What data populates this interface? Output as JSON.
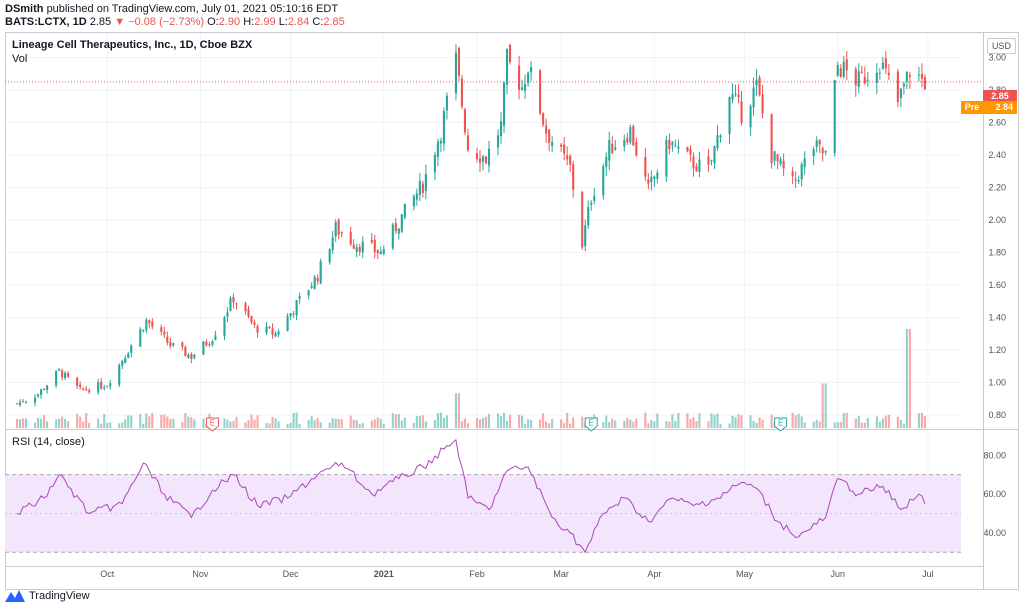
{
  "header": {
    "user": "DSmith",
    "published": "published on TradingView.com, July 01, 2021 05:10:16 EDT",
    "symbol": "BATS:LCTX, 1D",
    "last": "2.85",
    "change": "−0.08 (−2.73%)",
    "o_label": "O:",
    "o": "2.90",
    "h_label": "H:",
    "h": "2.99",
    "l_label": "L:",
    "l": "2.84",
    "c_label": "C:",
    "c": "2.85"
  },
  "pane": {
    "title": "Lineage Cell Therapeutics, Inc., 1D, Cboe BZX",
    "vol_label": "Vol",
    "rsi_label": "RSI (14, close)",
    "currency": "USD",
    "price_tag": "2.85",
    "pre_label": "Pre",
    "pre_price": "2.84"
  },
  "footer": {
    "brand": "TradingView"
  },
  "colors": {
    "up": "#26a69a",
    "down": "#ef5350",
    "rsi_line": "#ab47bc",
    "rsi_band": "#f3e5fb"
  },
  "chart_data": [
    {
      "type": "candlestick",
      "title": "Lineage Cell Therapeutics, Inc., 1D, Cboe BZX",
      "ylim": [
        0.72,
        3.12
      ],
      "yticks": [
        "3.00",
        "2.80",
        "2.60",
        "2.40",
        "2.20",
        "2.00",
        "1.80",
        "1.60",
        "1.40",
        "1.20",
        "1.00",
        "0.80"
      ],
      "x_labels": [
        "Oct",
        "Nov",
        "Dec",
        "2021",
        "Feb",
        "Mar",
        "Apr",
        "May",
        "Jun",
        "Jul"
      ],
      "events": [
        "E",
        "E",
        "E"
      ],
      "anchors": [
        [
          "2020-09-01",
          0.87
        ],
        [
          "2020-09-08",
          0.93
        ],
        [
          "2020-09-15",
          1.07
        ],
        [
          "2020-09-22",
          0.95
        ],
        [
          "2020-10-01",
          0.99
        ],
        [
          "2020-10-08",
          1.2
        ],
        [
          "2020-10-14",
          1.38
        ],
        [
          "2020-10-22",
          1.23
        ],
        [
          "2020-10-29",
          1.16
        ],
        [
          "2020-11-05",
          1.28
        ],
        [
          "2020-11-12",
          1.52
        ],
        [
          "2020-11-19",
          1.34
        ],
        [
          "2020-11-26",
          1.3
        ],
        [
          "2020-12-03",
          1.48
        ],
        [
          "2020-12-10",
          1.66
        ],
        [
          "2020-12-16",
          1.95
        ],
        [
          "2020-12-22",
          1.86
        ],
        [
          "2020-12-31",
          1.8
        ],
        [
          "2021-01-07",
          2.02
        ],
        [
          "2021-01-14",
          2.22
        ],
        [
          "2021-01-20",
          2.55
        ],
        [
          "2021-01-25",
          2.98
        ],
        [
          "2021-01-29",
          2.45
        ],
        [
          "2021-02-04",
          2.38
        ],
        [
          "2021-02-09",
          2.58
        ],
        [
          "2021-02-11",
          2.98
        ],
        [
          "2021-02-16",
          2.82
        ],
        [
          "2021-02-18",
          2.95
        ],
        [
          "2021-02-24",
          2.55
        ],
        [
          "2021-03-01",
          2.4
        ],
        [
          "2021-03-04",
          2.32
        ],
        [
          "2021-03-08",
          1.85
        ],
        [
          "2021-03-11",
          2.14
        ],
        [
          "2021-03-17",
          2.44
        ],
        [
          "2021-03-24",
          2.55
        ],
        [
          "2021-03-30",
          2.18
        ],
        [
          "2021-04-06",
          2.48
        ],
        [
          "2021-04-13",
          2.36
        ],
        [
          "2021-04-19",
          2.3
        ],
        [
          "2021-04-26",
          2.78
        ],
        [
          "2021-04-30",
          2.66
        ],
        [
          "2021-05-05",
          2.82
        ],
        [
          "2021-05-10",
          2.4
        ],
        [
          "2021-05-17",
          2.22
        ],
        [
          "2021-05-24",
          2.45
        ],
        [
          "2021-05-28",
          2.4
        ],
        [
          "2021-06-01",
          2.95
        ],
        [
          "2021-06-08",
          2.85
        ],
        [
          "2021-06-15",
          2.98
        ],
        [
          "2021-06-21",
          2.72
        ],
        [
          "2021-06-25",
          2.92
        ],
        [
          "2021-06-30",
          2.85
        ]
      ]
    },
    {
      "type": "bar",
      "title": "Vol",
      "spikes": [
        [
          "2021-01-25",
          0.35
        ],
        [
          "2021-05-28",
          0.45
        ],
        [
          "2021-06-25",
          1.0
        ]
      ]
    },
    {
      "type": "line",
      "title": "RSI (14, close)",
      "ylim": [
        25,
        92
      ],
      "yticks": [
        "80.00",
        "60.00",
        "40.00"
      ],
      "band": [
        30,
        70
      ],
      "points": [
        [
          "2020-09-01",
          50
        ],
        [
          "2020-09-10",
          58
        ],
        [
          "2020-09-15",
          70
        ],
        [
          "2020-09-25",
          50
        ],
        [
          "2020-10-06",
          55
        ],
        [
          "2020-10-13",
          76
        ],
        [
          "2020-10-20",
          60
        ],
        [
          "2020-10-29",
          48
        ],
        [
          "2020-11-05",
          62
        ],
        [
          "2020-11-12",
          70
        ],
        [
          "2020-11-20",
          54
        ],
        [
          "2020-11-30",
          58
        ],
        [
          "2020-12-10",
          70
        ],
        [
          "2020-12-18",
          76
        ],
        [
          "2020-12-28",
          60
        ],
        [
          "2021-01-06",
          68
        ],
        [
          "2021-01-14",
          74
        ],
        [
          "2021-01-25",
          88
        ],
        [
          "2021-01-29",
          58
        ],
        [
          "2021-02-05",
          52
        ],
        [
          "2021-02-11",
          72
        ],
        [
          "2021-02-18",
          74
        ],
        [
          "2021-02-26",
          48
        ],
        [
          "2021-03-04",
          40
        ],
        [
          "2021-03-09",
          30
        ],
        [
          "2021-03-15",
          50
        ],
        [
          "2021-03-22",
          58
        ],
        [
          "2021-03-30",
          46
        ],
        [
          "2021-04-07",
          58
        ],
        [
          "2021-04-14",
          54
        ],
        [
          "2021-04-22",
          58
        ],
        [
          "2021-04-30",
          66
        ],
        [
          "2021-05-05",
          63
        ],
        [
          "2021-05-12",
          46
        ],
        [
          "2021-05-19",
          38
        ],
        [
          "2021-05-28",
          48
        ],
        [
          "2021-06-01",
          68
        ],
        [
          "2021-06-08",
          60
        ],
        [
          "2021-06-16",
          64
        ],
        [
          "2021-06-22",
          52
        ],
        [
          "2021-06-28",
          60
        ],
        [
          "2021-06-30",
          55
        ]
      ]
    }
  ]
}
